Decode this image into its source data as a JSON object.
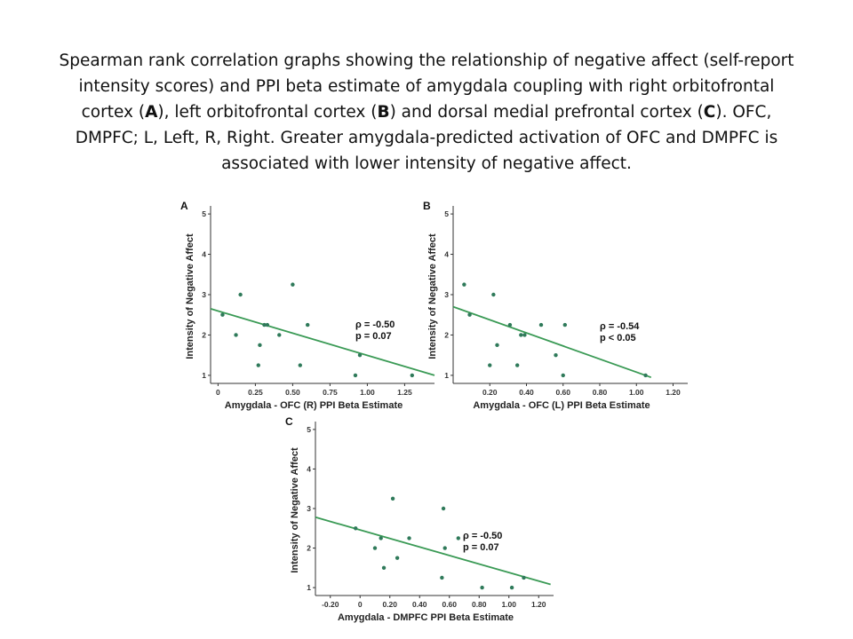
{
  "caption": {
    "part1": "Spearman rank correlation graphs showing the relationship of negative affect (self-report intensity scores) and PPI beta estimate of amygdala coupling with right orbitofrontal cortex (",
    "a": "A",
    "part2": "), left orbitofrontal cortex (",
    "b": "B",
    "part3": ") and dorsal medial prefrontal cortex (",
    "c": "C",
    "part4": "). OFC, DMPFC; L, Left, R, Right. Greater amygdala-predicted activation of OFC and DMPFC is associated with lower intensity of negative affect."
  },
  "colors": {
    "fit_line": "#3a9a55",
    "points": "#2f7a5a",
    "axis": "#333333"
  },
  "chart_data": [
    {
      "type": "scatter",
      "panel": "A",
      "xlabel": "Amygdala - OFC (R) PPI Beta Estimate",
      "ylabel": "Intensity of Negative Affect",
      "xticks": [
        "0",
        "0.25",
        "0.50",
        "0.75",
        "1.00",
        "1.25"
      ],
      "xtick_values": [
        0,
        0.25,
        0.5,
        0.75,
        1.0,
        1.25
      ],
      "yticks": [
        "1",
        "2",
        "3",
        "4",
        "5"
      ],
      "xlim": [
        -0.05,
        1.45
      ],
      "ylim": [
        0.8,
        5.2
      ],
      "points": [
        [
          0.03,
          2.5
        ],
        [
          0.12,
          2.0
        ],
        [
          0.15,
          3.0
        ],
        [
          0.27,
          1.25
        ],
        [
          0.28,
          1.75
        ],
        [
          0.31,
          2.25
        ],
        [
          0.33,
          2.25
        ],
        [
          0.41,
          2.0
        ],
        [
          0.5,
          3.25
        ],
        [
          0.55,
          1.25
        ],
        [
          0.6,
          2.25
        ],
        [
          0.92,
          1.0
        ],
        [
          0.95,
          1.5
        ],
        [
          1.3,
          1.0
        ]
      ],
      "fit": [
        [
          -0.05,
          2.65
        ],
        [
          1.45,
          1.0
        ]
      ],
      "rho": "ρ = -0.50",
      "p": "p = 0.07",
      "grid": false
    },
    {
      "type": "scatter",
      "panel": "B",
      "xlabel": "Amygdala - OFC (L) PPI Beta Estimate",
      "ylabel": "Intensity of Negative Affect",
      "xticks": [
        "0.20",
        "0.40",
        "0.60",
        "0.80",
        "1.00",
        "1.20"
      ],
      "xtick_values": [
        0.2,
        0.4,
        0.6,
        0.8,
        1.0,
        1.2
      ],
      "yticks": [
        "1",
        "2",
        "3",
        "4",
        "5"
      ],
      "xlim": [
        0.0,
        1.28
      ],
      "ylim": [
        0.8,
        5.2
      ],
      "points": [
        [
          0.06,
          3.25
        ],
        [
          0.09,
          2.5
        ],
        [
          0.2,
          1.25
        ],
        [
          0.22,
          3.0
        ],
        [
          0.24,
          1.75
        ],
        [
          0.31,
          2.25
        ],
        [
          0.35,
          1.25
        ],
        [
          0.37,
          2.0
        ],
        [
          0.39,
          2.0
        ],
        [
          0.48,
          2.25
        ],
        [
          0.56,
          1.5
        ],
        [
          0.6,
          1.0
        ],
        [
          0.61,
          2.25
        ],
        [
          1.05,
          1.0
        ]
      ],
      "fit": [
        [
          0.0,
          2.7
        ],
        [
          1.08,
          0.95
        ]
      ],
      "rho": "ρ = -0.54",
      "p": "p < 0.05",
      "grid": false
    },
    {
      "type": "scatter",
      "panel": "C",
      "xlabel": "Amygdala - DMPFC PPI Beta Estimate",
      "ylabel": "Intensity of Negative Affect",
      "xticks": [
        "-0.20",
        "0",
        "0.20",
        "0.40",
        "0.60",
        "0.80",
        "1.00",
        "1.20"
      ],
      "xtick_values": [
        -0.2,
        0.0,
        0.2,
        0.4,
        0.6,
        0.8,
        1.0,
        1.2
      ],
      "yticks": [
        "1",
        "2",
        "3",
        "4",
        "5"
      ],
      "xlim": [
        -0.3,
        1.3
      ],
      "ylim": [
        0.8,
        5.2
      ],
      "points": [
        [
          -0.03,
          2.5
        ],
        [
          0.1,
          2.0
        ],
        [
          0.14,
          2.25
        ],
        [
          0.16,
          1.5
        ],
        [
          0.22,
          3.25
        ],
        [
          0.25,
          1.75
        ],
        [
          0.33,
          2.25
        ],
        [
          0.55,
          1.25
        ],
        [
          0.56,
          3.0
        ],
        [
          0.57,
          2.0
        ],
        [
          0.66,
          2.25
        ],
        [
          0.82,
          1.0
        ],
        [
          1.02,
          1.0
        ],
        [
          1.1,
          1.25
        ]
      ],
      "fit": [
        [
          -0.3,
          2.78
        ],
        [
          1.28,
          1.08
        ]
      ],
      "rho": "ρ = -0.50",
      "p": "p = 0.07",
      "grid": false
    }
  ]
}
